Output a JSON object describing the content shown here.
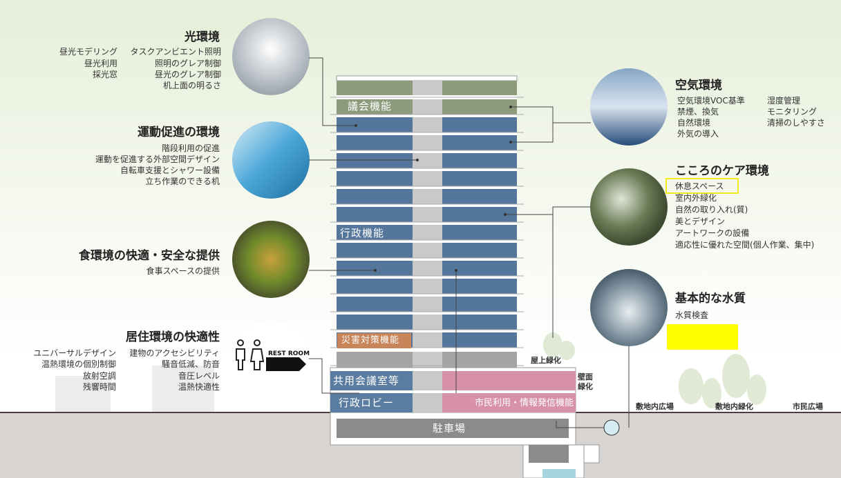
{
  "light": {
    "title": "光環境",
    "items": [
      "昼光モデリング",
      "タスクアンビエント照明",
      "昼光利用",
      "照明のグレア制御",
      "採光窓",
      "昼光のグレア制御",
      "机上面の明るさ"
    ]
  },
  "exercise": {
    "title": "運動促進の環境",
    "items": [
      "階段利用の促進",
      "運動を促進する外部空間デザイン",
      "自転車支援とシャワー設備",
      "立ち作業のできる机"
    ]
  },
  "food": {
    "title": "食環境の快適・安全な提供",
    "items": [
      "食事スペースの提供"
    ]
  },
  "living": {
    "title": "居住環境の快適性",
    "items": [
      "ユニバーサルデザイン",
      "建物のアクセシビリティ",
      "温熱環境の個別制御",
      "騒音低減、防音",
      "放射空調",
      "音圧レベル",
      "残響時間",
      "温熱快適性"
    ],
    "sign": "REST ROOM"
  },
  "air": {
    "title": "空気環境",
    "items": [
      "空気環境VOC基準",
      "湿度管理",
      "禁煙、換気",
      "モニタリング",
      "自然環境",
      "清掃のしやすさ",
      "外気の導入"
    ]
  },
  "care": {
    "title": "こころのケア環境",
    "items": [
      "休息スペース",
      "室内外緑化",
      "自然の取り入れ(質)",
      "美とデザイン",
      "アートワークの設備",
      "適応性に優れた空間(個人作業、集中)"
    ]
  },
  "water": {
    "title": "基本的な水質",
    "items": [
      "水質検査"
    ]
  },
  "building": {
    "labels": [
      "議会機能",
      "行政機能",
      "災害対策機能",
      "共用会議室等",
      "行政ロビー",
      "市民利用・情報発信機能",
      "駐車場"
    ]
  },
  "site": [
    "屋上緑化",
    "壁面緑化",
    "敷地内広場",
    "敷地内緑化",
    "市民広場"
  ]
}
